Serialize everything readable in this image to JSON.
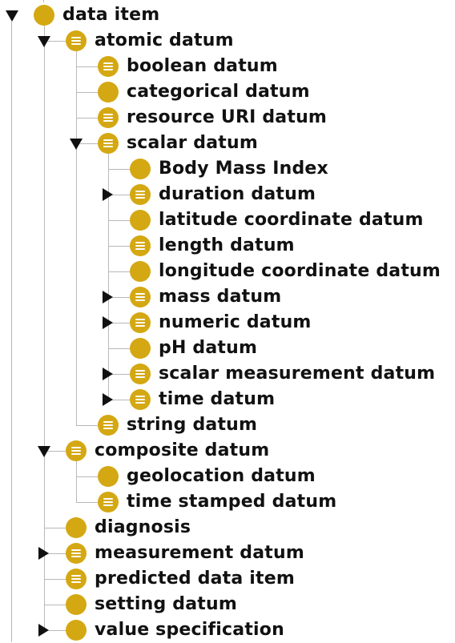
{
  "tree": {
    "nodes": [
      {
        "label": "data item",
        "depth": 0,
        "toggle": "expanded",
        "icon": "class-icon-plain"
      },
      {
        "label": "atomic datum",
        "depth": 1,
        "toggle": "expanded",
        "icon": "class-icon-defined"
      },
      {
        "label": "boolean datum",
        "depth": 2,
        "toggle": "",
        "icon": "class-icon-defined"
      },
      {
        "label": "categorical datum",
        "depth": 2,
        "toggle": "",
        "icon": "class-icon-plain"
      },
      {
        "label": "resource URI datum",
        "depth": 2,
        "toggle": "",
        "icon": "class-icon-defined"
      },
      {
        "label": "scalar datum",
        "depth": 2,
        "toggle": "expanded",
        "icon": "class-icon-defined"
      },
      {
        "label": "Body Mass Index",
        "depth": 3,
        "toggle": "",
        "icon": "class-icon-plain"
      },
      {
        "label": "duration datum",
        "depth": 3,
        "toggle": "collapsed",
        "icon": "class-icon-defined"
      },
      {
        "label": "latitude coordinate datum",
        "depth": 3,
        "toggle": "",
        "icon": "class-icon-plain"
      },
      {
        "label": "length datum",
        "depth": 3,
        "toggle": "",
        "icon": "class-icon-defined"
      },
      {
        "label": "longitude coordinate datum",
        "depth": 3,
        "toggle": "",
        "icon": "class-icon-plain"
      },
      {
        "label": "mass datum",
        "depth": 3,
        "toggle": "collapsed",
        "icon": "class-icon-defined"
      },
      {
        "label": "numeric datum",
        "depth": 3,
        "toggle": "collapsed",
        "icon": "class-icon-defined"
      },
      {
        "label": "pH datum",
        "depth": 3,
        "toggle": "",
        "icon": "class-icon-plain"
      },
      {
        "label": "scalar measurement datum",
        "depth": 3,
        "toggle": "collapsed",
        "icon": "class-icon-defined"
      },
      {
        "label": "time datum",
        "depth": 3,
        "toggle": "collapsed",
        "icon": "class-icon-defined"
      },
      {
        "label": "string datum",
        "depth": 2,
        "toggle": "",
        "icon": "class-icon-defined"
      },
      {
        "label": "composite datum",
        "depth": 1,
        "toggle": "expanded",
        "icon": "class-icon-defined"
      },
      {
        "label": "geolocation datum",
        "depth": 2,
        "toggle": "",
        "icon": "class-icon-plain"
      },
      {
        "label": "time stamped datum",
        "depth": 2,
        "toggle": "",
        "icon": "class-icon-defined"
      },
      {
        "label": "diagnosis",
        "depth": 1,
        "toggle": "",
        "icon": "class-icon-plain"
      },
      {
        "label": "measurement datum",
        "depth": 1,
        "toggle": "collapsed",
        "icon": "class-icon-defined"
      },
      {
        "label": "predicted data item",
        "depth": 1,
        "toggle": "",
        "icon": "class-icon-defined"
      },
      {
        "label": "setting datum",
        "depth": 1,
        "toggle": "",
        "icon": "class-icon-plain"
      },
      {
        "label": "value specification",
        "depth": 1,
        "toggle": "collapsed",
        "icon": "class-icon-plain"
      }
    ]
  },
  "colors": {
    "icon_fill": "#d4a812",
    "guide_line": "#b8b8b8",
    "text": "#111111"
  }
}
